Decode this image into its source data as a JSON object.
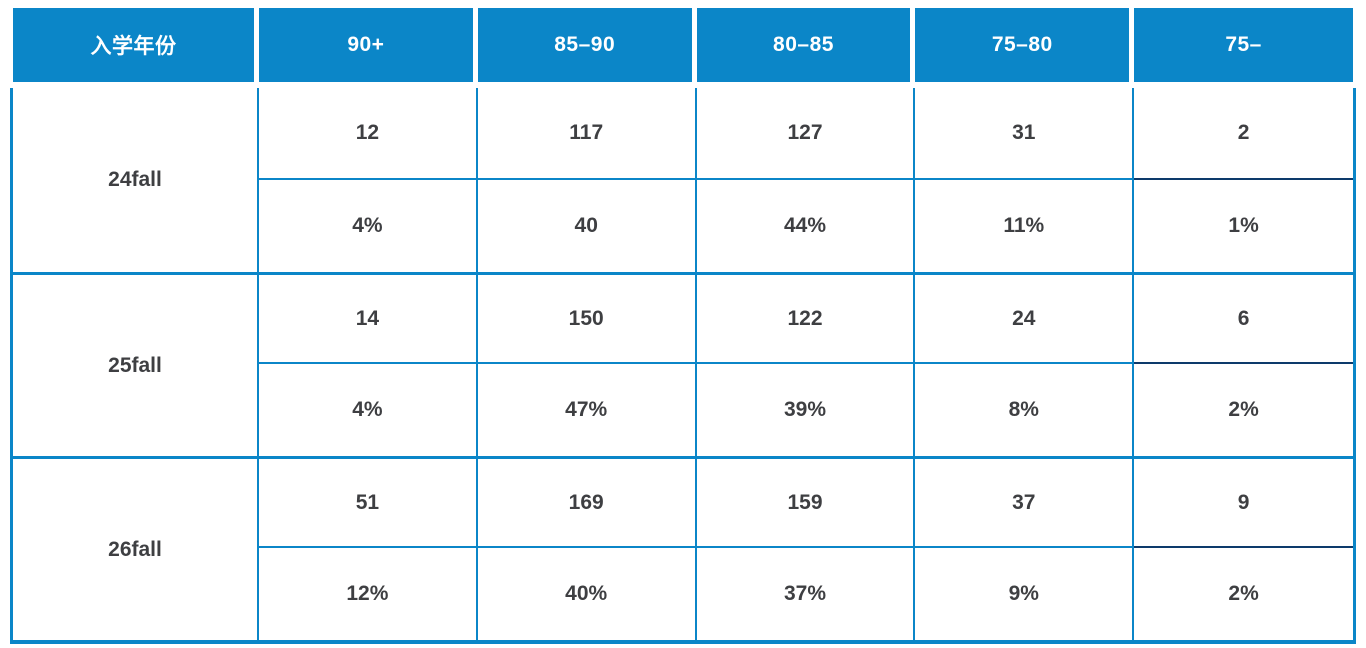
{
  "colors": {
    "accent_blue": "#0b86c8",
    "dark_divider_navy": "#0d3a6b",
    "header_text": "#ffffff",
    "body_text": "#3e3f42"
  },
  "chart_data": {
    "type": "table",
    "title": "",
    "columns": [
      "入学年份",
      "90+",
      "85–90",
      "80–85",
      "75–80",
      "75–"
    ],
    "rows": [
      {
        "year": "24fall",
        "counts": [
          "12",
          "117",
          "127",
          "31",
          "2"
        ],
        "percents": [
          "4%",
          "40",
          "44%",
          "11%",
          "1%"
        ]
      },
      {
        "year": "25fall",
        "counts": [
          "14",
          "150",
          "122",
          "24",
          "6"
        ],
        "percents": [
          "4%",
          "47%",
          "39%",
          "8%",
          "2%"
        ]
      },
      {
        "year": "26fall",
        "counts": [
          "51",
          "169",
          "159",
          "37",
          "9"
        ],
        "percents": [
          "12%",
          "40%",
          "37%",
          "9%",
          "2%"
        ]
      }
    ]
  }
}
